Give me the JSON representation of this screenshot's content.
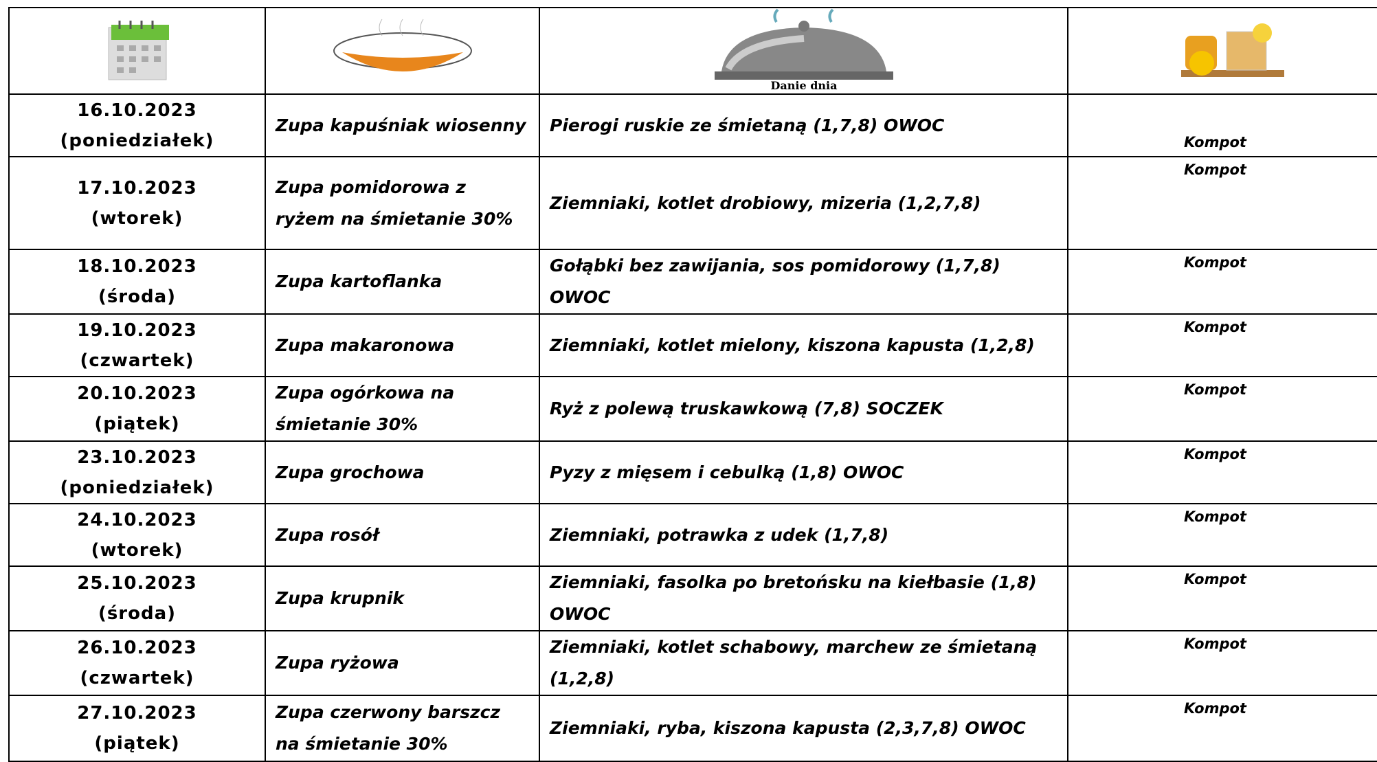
{
  "header": {
    "dish_label": "Danie dnia"
  },
  "table": {
    "rows": [
      [
        "16.10.2023",
        "(poniedziałek)",
        "Zupa kapuśniak wiosenny",
        "Pierogi ruskie ze śmietaną (1,7,8) OWOC",
        "Kompot"
      ],
      [
        "17.10.2023",
        "(wtorek)",
        "Zupa pomidorowa z ryżem na śmietanie 30%",
        "Ziemniaki, kotlet drobiowy, mizeria (1,2,7,8)",
        "Kompot"
      ],
      [
        "18.10.2023",
        "(środa)",
        "Zupa kartoflanka",
        "Gołąbki bez zawijania, sos pomidorowy (1,7,8) OWOC",
        "Kompot"
      ],
      [
        "19.10.2023",
        "(czwartek)",
        "Zupa makaronowa",
        "Ziemniaki, kotlet mielony, kiszona kapusta (1,2,8)",
        "Kompot"
      ],
      [
        "20.10.2023",
        "(piątek)",
        "Zupa ogórkowa na śmietanie 30%",
        "Ryż z polewą truskawkową (7,8) SOCZEK",
        "Kompot"
      ],
      [
        "23.10.2023",
        "(poniedziałek)",
        "Zupa grochowa",
        "Pyzy z mięsem i cebulką (1,8) OWOC",
        "Kompot"
      ],
      [
        "24.10.2023",
        "(wtorek)",
        "Zupa rosół",
        "Ziemniaki, potrawka z udek (1,7,8)",
        "Kompot"
      ],
      [
        "25.10.2023",
        "(środa)",
        "Zupa krupnik",
        "Ziemniaki, fasolka po bretońsku na kiełbasie (1,8) OWOC",
        "Kompot"
      ],
      [
        "26.10.2023",
        "(czwartek)",
        "Zupa ryżowa",
        "Ziemniaki, kotlet schabowy, marchew ze śmietaną (1,2,8)",
        "Kompot"
      ],
      [
        "27.10.2023",
        "(piątek)",
        "Zupa czerwony barszcz na śmietanie 30%",
        "Ziemniaki, ryba, kiszona kapusta (2,3,7,8) OWOC",
        "Kompot"
      ]
    ]
  }
}
